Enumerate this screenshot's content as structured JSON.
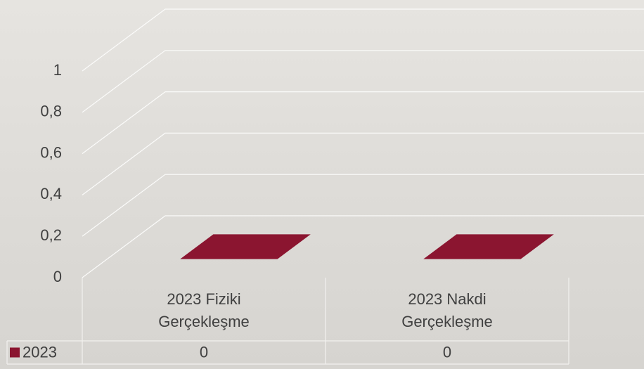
{
  "chart_data": {
    "type": "bar3d",
    "categories": [
      "2023 Fiziki Gerçekleşme",
      "2023 Nakdi Gerçekleşme"
    ],
    "series": [
      {
        "name": "2023",
        "color": "#8b1530",
        "values": [
          0,
          0
        ]
      }
    ],
    "ylim": [
      0,
      1
    ],
    "yticks": [
      0,
      {
        "value": 0.2,
        "label": "0,2"
      },
      {
        "value": 0.4,
        "label": "0,4"
      },
      {
        "value": 0.6,
        "label": "0,6"
      },
      {
        "value": 0.8,
        "label": "0,8"
      },
      1
    ],
    "grid": true,
    "data_table": true
  }
}
